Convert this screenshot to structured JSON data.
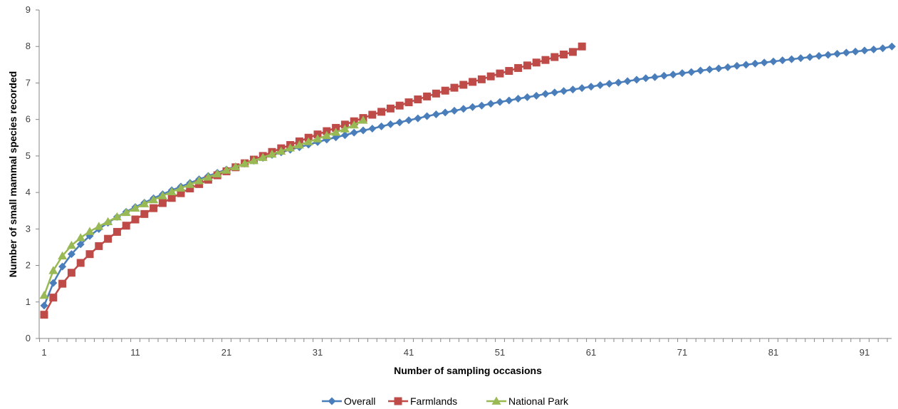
{
  "chart_data": {
    "type": "line",
    "xlabel": "Number of sampling occasions",
    "ylabel": "Number of small mammal species recorded",
    "xlim": [
      1,
      94
    ],
    "ylim": [
      0,
      9
    ],
    "x_tick_labels": [
      "1",
      "11",
      "21",
      "31",
      "41",
      "51",
      "61",
      "71",
      "81",
      "91"
    ],
    "y_tick_labels": [
      "0",
      "1",
      "2",
      "3",
      "4",
      "5",
      "6",
      "7",
      "8",
      "9"
    ],
    "grid": false,
    "legend_position": "bottom",
    "series": [
      {
        "name": "Overall",
        "color": "#4a7ebb",
        "marker": "diamond",
        "x": [
          1,
          2,
          3,
          4,
          5,
          6,
          7,
          8,
          9,
          10,
          11,
          12,
          13,
          14,
          15,
          16,
          17,
          18,
          19,
          20,
          21,
          22,
          23,
          24,
          25,
          26,
          27,
          28,
          29,
          30,
          31,
          32,
          33,
          34,
          35,
          36,
          37,
          38,
          39,
          40,
          41,
          42,
          43,
          44,
          45,
          46,
          47,
          48,
          49,
          50,
          51,
          52,
          53,
          54,
          55,
          56,
          57,
          58,
          59,
          60,
          61,
          62,
          63,
          64,
          65,
          66,
          67,
          68,
          69,
          70,
          71,
          72,
          73,
          74,
          75,
          76,
          77,
          78,
          79,
          80,
          81,
          82,
          83,
          84,
          85,
          86,
          87,
          88,
          89,
          90,
          91,
          92,
          93,
          94
        ],
        "values": [
          0.9,
          1.52,
          1.97,
          2.31,
          2.58,
          2.81,
          3.0,
          3.17,
          3.33,
          3.47,
          3.6,
          3.72,
          3.84,
          3.95,
          4.06,
          4.16,
          4.26,
          4.36,
          4.45,
          4.54,
          4.63,
          4.71,
          4.79,
          4.87,
          4.95,
          5.03,
          5.1,
          5.17,
          5.24,
          5.31,
          5.38,
          5.45,
          5.51,
          5.57,
          5.64,
          5.7,
          5.75,
          5.81,
          5.87,
          5.92,
          5.98,
          6.03,
          6.09,
          6.14,
          6.19,
          6.24,
          6.29,
          6.34,
          6.38,
          6.43,
          6.48,
          6.52,
          6.57,
          6.61,
          6.65,
          6.7,
          6.74,
          6.78,
          6.82,
          6.86,
          6.9,
          6.94,
          6.98,
          7.01,
          7.05,
          7.09,
          7.13,
          7.16,
          7.2,
          7.23,
          7.27,
          7.3,
          7.34,
          7.37,
          7.4,
          7.43,
          7.47,
          7.5,
          7.53,
          7.56,
          7.59,
          7.62,
          7.65,
          7.68,
          7.71,
          7.74,
          7.77,
          7.8,
          7.83,
          7.86,
          7.89,
          7.92,
          7.95,
          8.0
        ]
      },
      {
        "name": "Farmlands",
        "color": "#be4b48",
        "marker": "square",
        "x": [
          1,
          2,
          3,
          4,
          5,
          6,
          7,
          8,
          9,
          10,
          11,
          12,
          13,
          14,
          15,
          16,
          17,
          18,
          19,
          20,
          21,
          22,
          23,
          24,
          25,
          26,
          27,
          28,
          29,
          30,
          31,
          32,
          33,
          34,
          35,
          36,
          37,
          38,
          39,
          40,
          41,
          42,
          43,
          44,
          45,
          46,
          47,
          48,
          49,
          50,
          51,
          52,
          53,
          54,
          55,
          56,
          57,
          58,
          59,
          60
        ],
        "values": [
          0.65,
          1.12,
          1.5,
          1.8,
          2.07,
          2.31,
          2.53,
          2.73,
          2.92,
          3.09,
          3.26,
          3.41,
          3.57,
          3.71,
          3.85,
          3.98,
          4.11,
          4.23,
          4.35,
          4.47,
          4.58,
          4.69,
          4.8,
          4.9,
          5.0,
          5.11,
          5.21,
          5.3,
          5.4,
          5.5,
          5.59,
          5.68,
          5.77,
          5.86,
          5.95,
          6.04,
          6.13,
          6.21,
          6.3,
          6.38,
          6.47,
          6.55,
          6.63,
          6.71,
          6.79,
          6.87,
          6.95,
          7.03,
          7.1,
          7.18,
          7.26,
          7.33,
          7.41,
          7.48,
          7.56,
          7.63,
          7.71,
          7.78,
          7.85,
          8.0
        ]
      },
      {
        "name": "National Park",
        "color": "#98b954",
        "marker": "triangle",
        "x": [
          1,
          2,
          3,
          4,
          5,
          6,
          7,
          8,
          9,
          10,
          11,
          12,
          13,
          14,
          15,
          16,
          17,
          18,
          19,
          20,
          21,
          22,
          23,
          24,
          25,
          26,
          27,
          28,
          29,
          30,
          31,
          32,
          33,
          34,
          35,
          36
        ],
        "values": [
          1.18,
          1.86,
          2.26,
          2.55,
          2.76,
          2.93,
          3.07,
          3.2,
          3.33,
          3.45,
          3.57,
          3.69,
          3.8,
          3.91,
          4.02,
          4.12,
          4.22,
          4.32,
          4.42,
          4.51,
          4.61,
          4.7,
          4.79,
          4.87,
          4.96,
          5.05,
          5.13,
          5.22,
          5.3,
          5.39,
          5.47,
          5.56,
          5.65,
          5.74,
          5.85,
          5.98
        ]
      }
    ]
  }
}
